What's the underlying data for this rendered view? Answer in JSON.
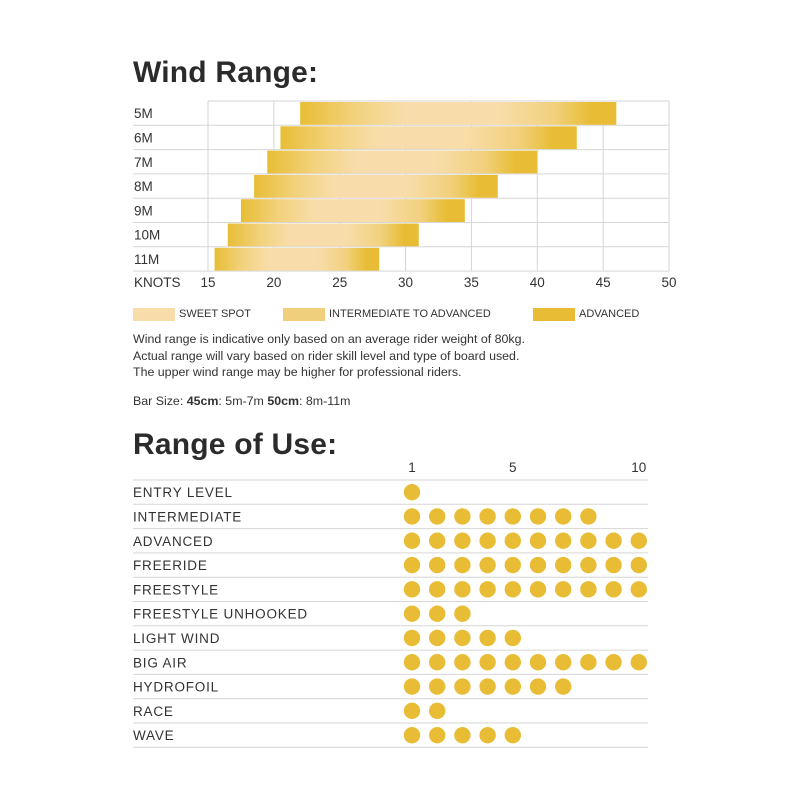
{
  "wind_range": {
    "title": "Wind Range:",
    "legend": [
      {
        "label": "SWEET SPOT",
        "color": "#f8ddaa"
      },
      {
        "label": "INTERMEDIATE TO ADVANCED",
        "color": "#efcf7c"
      },
      {
        "label": "ADVANCED",
        "color": "#e8bd35"
      }
    ],
    "notes": [
      "Wind range is indicative only based on an average rider weight of 80kg.",
      "Actual range will vary based on rider skill level and type of board used.",
      "The upper wind range may be higher for professional riders."
    ],
    "bar_size": {
      "prefix": "Bar Size: ",
      "size_a": "45cm",
      "range_a": ": 5m-7m ",
      "size_b": "50cm",
      "range_b": ": 8m-11m"
    }
  },
  "range_of_use": {
    "title": "Range of Use:"
  },
  "chart_data": [
    {
      "type": "bar",
      "orientation": "horizontal-range",
      "x_axis_label": "KNOTS",
      "xlim": [
        12.5,
        50
      ],
      "x_ticks": [
        15,
        20,
        25,
        30,
        35,
        40,
        45,
        50
      ],
      "grid": true,
      "categories": [
        "5M",
        "6M",
        "7M",
        "8M",
        "9M",
        "10M",
        "11M"
      ],
      "series": [
        {
          "name": "ADVANCED",
          "ranges": [
            [
              22,
              46
            ],
            [
              20.5,
              43
            ],
            [
              19.5,
              40
            ],
            [
              18.5,
              37
            ],
            [
              17.5,
              34.5
            ],
            [
              16.5,
              31
            ],
            [
              15.5,
              28
            ]
          ]
        }
      ],
      "colors": {
        "sweet": "#f8ddaa",
        "intermediate": "#efcf7c",
        "advanced": "#e8bd35",
        "grid": "#d6d6d6"
      }
    },
    {
      "type": "scatter",
      "scale_ticks": [
        "1",
        "5",
        "10"
      ],
      "scale_tick_values": [
        1,
        5,
        10
      ],
      "max": 10,
      "dot_color": "#e8bd35",
      "categories": [
        "ENTRY LEVEL",
        "INTERMEDIATE",
        "ADVANCED",
        "FREERIDE",
        "FREESTYLE",
        "FREESTYLE UNHOOKED",
        "LIGHT WIND",
        "BIG AIR",
        "HYDROFOIL",
        "RACE",
        "WAVE"
      ],
      "values": [
        1,
        8,
        10,
        10,
        10,
        3,
        5,
        10,
        7,
        2,
        5
      ]
    }
  ]
}
